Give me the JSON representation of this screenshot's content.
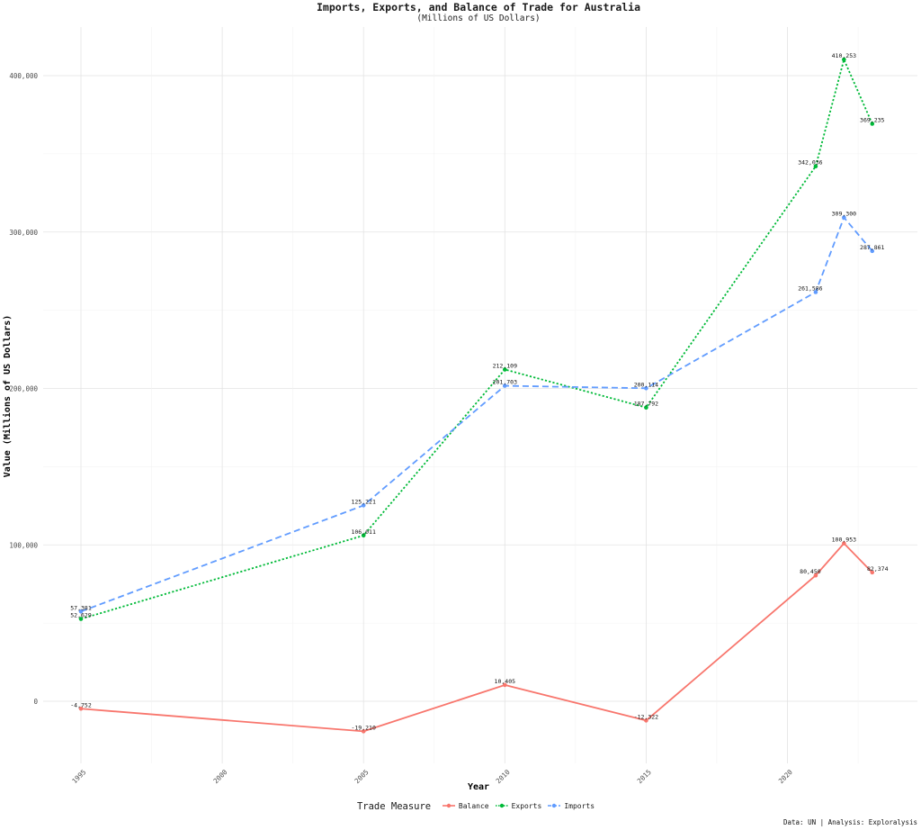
{
  "chart_data": {
    "type": "line",
    "title": "Imports, Exports, and Balance of Trade for Australia",
    "subtitle": "(Millions of US Dollars)",
    "xlabel": "Year",
    "ylabel": "Value (Millions of US Dollars)",
    "xlim": [
      1995,
      2023
    ],
    "ylim": [
      -40000,
      430000
    ],
    "x_ticks": [
      1995,
      2000,
      2005,
      2010,
      2015,
      2020
    ],
    "y_ticks": [
      0,
      100000,
      200000,
      300000,
      400000
    ],
    "y_tick_labels": [
      "0",
      "100,000",
      "200,000",
      "300,000",
      "400,000"
    ],
    "grid": true,
    "legend_title": "Trade Measure",
    "legend_position": "bottom",
    "caption": "Data: UN | Analysis: Exploralysis",
    "x": [
      1995,
      2005,
      2010,
      2015,
      2021,
      2022,
      2023
    ],
    "series": [
      {
        "name": "Balance",
        "color": "#F8766D",
        "line_style": "solid",
        "values": [
          -4752,
          -19210,
          10405,
          -12322,
          80450,
          100953,
          82374
        ],
        "labels": [
          "-4,752",
          "-19,210",
          "10,405",
          "-12,322",
          "80,450",
          "100,953",
          "82,374"
        ]
      },
      {
        "name": "Exports",
        "color": "#00BA38",
        "line_style": "dotted",
        "values": [
          52629,
          106011,
          212109,
          187792,
          342036,
          410253,
          369235
        ],
        "labels": [
          "52,629",
          "106,011",
          "212,109",
          "187,792",
          "342,036",
          "410,253",
          "369,235"
        ]
      },
      {
        "name": "Imports",
        "color": "#619CFF",
        "line_style": "dashed",
        "values": [
          57381,
          125221,
          201703,
          200114,
          261586,
          309300,
          287861
        ],
        "labels": [
          "57,381",
          "125,221",
          "201,703",
          "200,114",
          "261,586",
          "309,300",
          "287,861"
        ]
      }
    ]
  }
}
